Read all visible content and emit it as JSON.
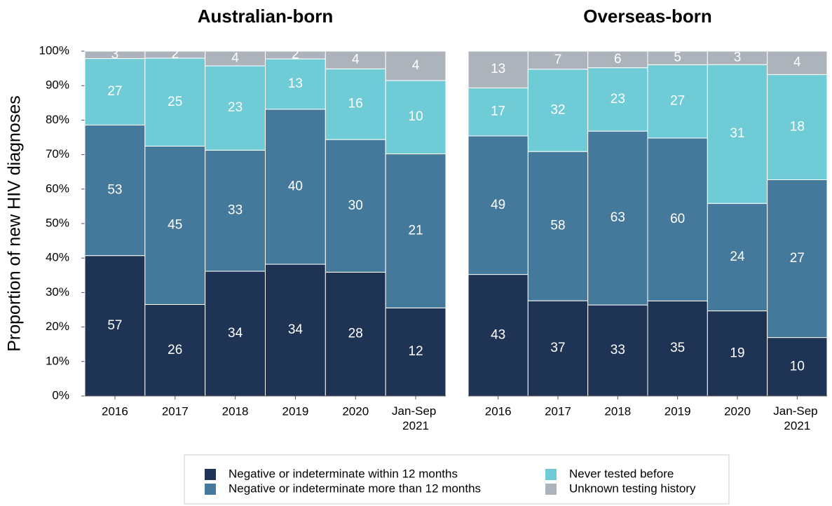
{
  "chart_data": [
    {
      "type": "stacked100",
      "title": "Australian-born",
      "y_label": "Proportion of new HIV diagnoses",
      "categories": [
        "2016",
        "2017",
        "2018",
        "2019",
        "2020",
        "Jan-Sep 2021"
      ],
      "ylim": [
        0,
        100
      ],
      "yticks": [
        {
          "value": 0,
          "label": "0%"
        },
        {
          "value": 10,
          "label": "10%"
        },
        {
          "value": 20,
          "label": "20%"
        },
        {
          "value": 30,
          "label": "30%"
        },
        {
          "value": 40,
          "label": "40%"
        },
        {
          "value": 50,
          "label": "50%"
        },
        {
          "value": 60,
          "label": "60%"
        },
        {
          "value": 70,
          "label": "70%"
        },
        {
          "value": 80,
          "label": "80%"
        },
        {
          "value": 90,
          "label": "90%"
        },
        {
          "value": 100,
          "label": "100%"
        }
      ],
      "series": [
        {
          "name": "Negative or indeterminate within 12 months",
          "color": "#1f3354",
          "values": [
            57,
            26,
            34,
            34,
            28,
            12
          ]
        },
        {
          "name": "Negative or indeterminate more than 12 months",
          "color": "#44799b",
          "values": [
            53,
            45,
            33,
            40,
            30,
            21
          ]
        },
        {
          "name": "Never tested before",
          "color": "#6fcbd6",
          "values": [
            27,
            25,
            23,
            13,
            16,
            10
          ]
        },
        {
          "name": "Unknown testing history",
          "color": "#adb3bb",
          "values": [
            3,
            2,
            4,
            2,
            4,
            4
          ]
        }
      ]
    },
    {
      "type": "stacked100",
      "title": "Overseas-born",
      "categories": [
        "2016",
        "2017",
        "2018",
        "2019",
        "2020",
        "Jan-Sep 2021"
      ],
      "ylim": [
        0,
        100
      ],
      "series": [
        {
          "color": "#1f3354",
          "values": [
            43,
            37,
            33,
            35,
            19,
            10
          ]
        },
        {
          "color": "#44799b",
          "values": [
            49,
            58,
            63,
            60,
            24,
            27
          ]
        },
        {
          "color": "#6fcbd6",
          "values": [
            17,
            32,
            23,
            27,
            31,
            18
          ]
        },
        {
          "color": "#adb3bb",
          "values": [
            13,
            7,
            6,
            5,
            3,
            4
          ]
        }
      ]
    }
  ]
}
